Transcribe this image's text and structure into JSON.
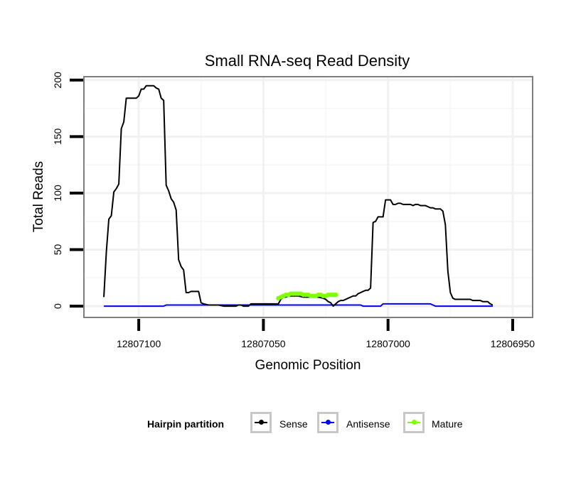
{
  "chart_data": {
    "type": "line",
    "title": "Small RNA-seq Read Density",
    "xlabel": "Genomic Position",
    "ylabel": "Total Reads",
    "x_reversed": true,
    "xlim": [
      12807122,
      12806942
    ],
    "ylim": [
      -10,
      203
    ],
    "xticks": [
      12807100,
      12807050,
      12807000,
      12806950
    ],
    "xtick_labels": [
      "12807100",
      "12807050",
      "12807000",
      "12806950"
    ],
    "yticks": [
      0,
      50,
      100,
      150,
      200
    ],
    "ytick_labels": [
      "0",
      "50",
      "100",
      "150",
      "200"
    ],
    "grid": true,
    "legend_position": "bottom",
    "legend_title": "Hairpin partition",
    "series": [
      {
        "name": "Sense",
        "color": "#000000",
        "points": [
          [
            12807114,
            8
          ],
          [
            12807113,
            48
          ],
          [
            12807112,
            77
          ],
          [
            12807111,
            80
          ],
          [
            12807110,
            101
          ],
          [
            12807109,
            104
          ],
          [
            12807108,
            108
          ],
          [
            12807107,
            157
          ],
          [
            12807106,
            163
          ],
          [
            12807105,
            184
          ],
          [
            12807104,
            184
          ],
          [
            12807103,
            184
          ],
          [
            12807102,
            184
          ],
          [
            12807101,
            184
          ],
          [
            12807100,
            186
          ],
          [
            12807099,
            192
          ],
          [
            12807098,
            192
          ],
          [
            12807097,
            195
          ],
          [
            12807096,
            195
          ],
          [
            12807095,
            195
          ],
          [
            12807094,
            195
          ],
          [
            12807093,
            193
          ],
          [
            12807092,
            192
          ],
          [
            12807091,
            184
          ],
          [
            12807090,
            182
          ],
          [
            12807089,
            107
          ],
          [
            12807088,
            102
          ],
          [
            12807087,
            95
          ],
          [
            12807086,
            92
          ],
          [
            12807085,
            85
          ],
          [
            12807084,
            41
          ],
          [
            12807083,
            35
          ],
          [
            12807082,
            32
          ],
          [
            12807081,
            12
          ],
          [
            12807080,
            12
          ],
          [
            12807079,
            13
          ],
          [
            12807078,
            13
          ],
          [
            12807077,
            13
          ],
          [
            12807076,
            13
          ],
          [
            12807075,
            3
          ],
          [
            12807074,
            2
          ],
          [
            12807072,
            1
          ],
          [
            12807070,
            1
          ],
          [
            12807068,
            1
          ],
          [
            12807066,
            0
          ],
          [
            12807064,
            0
          ],
          [
            12807062,
            0
          ],
          [
            12807061,
            0
          ],
          [
            12807060,
            1
          ],
          [
            12807059,
            1
          ],
          [
            12807058,
            0
          ],
          [
            12807057,
            0
          ],
          [
            12807056,
            0
          ],
          [
            12807055,
            2
          ],
          [
            12807054,
            2
          ],
          [
            12807050,
            2
          ],
          [
            12807045,
            2
          ],
          [
            12807044,
            2
          ],
          [
            12807043,
            6
          ],
          [
            12807042,
            8
          ],
          [
            12807041,
            8
          ],
          [
            12807040,
            9
          ],
          [
            12807038,
            9
          ],
          [
            12807036,
            9
          ],
          [
            12807034,
            8
          ],
          [
            12807032,
            8
          ],
          [
            12807030,
            8
          ],
          [
            12807028,
            8
          ],
          [
            12807026,
            7
          ],
          [
            12807025,
            6
          ],
          [
            12807024,
            4
          ],
          [
            12807023,
            3
          ],
          [
            12807022,
            0
          ],
          [
            12807021,
            2
          ],
          [
            12807020,
            4
          ],
          [
            12807019,
            5
          ],
          [
            12807018,
            5
          ],
          [
            12807017,
            6
          ],
          [
            12807016,
            7
          ],
          [
            12807015,
            8
          ],
          [
            12807014,
            9
          ],
          [
            12807013,
            9
          ],
          [
            12807012,
            11
          ],
          [
            12807011,
            12
          ],
          [
            12807010,
            13
          ],
          [
            12807009,
            14
          ],
          [
            12807008,
            14
          ],
          [
            12807007,
            16
          ],
          [
            12807006,
            74
          ],
          [
            12807005,
            75
          ],
          [
            12807004,
            79
          ],
          [
            12807003,
            79
          ],
          [
            12807002,
            79
          ],
          [
            12807001,
            94
          ],
          [
            12807000,
            94
          ],
          [
            12806999,
            94
          ],
          [
            12806998,
            90
          ],
          [
            12806997,
            90
          ],
          [
            12806996,
            91
          ],
          [
            12806995,
            91
          ],
          [
            12806994,
            90
          ],
          [
            12806993,
            90
          ],
          [
            12806992,
            90
          ],
          [
            12806991,
            90
          ],
          [
            12806990,
            89
          ],
          [
            12806989,
            90
          ],
          [
            12806988,
            90
          ],
          [
            12806987,
            89
          ],
          [
            12806986,
            89
          ],
          [
            12806985,
            89
          ],
          [
            12806984,
            88
          ],
          [
            12806983,
            87
          ],
          [
            12806982,
            87
          ],
          [
            12806981,
            86
          ],
          [
            12806980,
            86
          ],
          [
            12806979,
            86
          ],
          [
            12806978,
            84
          ],
          [
            12806977,
            72
          ],
          [
            12806976,
            31
          ],
          [
            12806975,
            12
          ],
          [
            12806974,
            7
          ],
          [
            12806973,
            6
          ],
          [
            12806972,
            6
          ],
          [
            12806971,
            6
          ],
          [
            12806970,
            6
          ],
          [
            12806969,
            6
          ],
          [
            12806968,
            6
          ],
          [
            12806967,
            6
          ],
          [
            12806966,
            5
          ],
          [
            12806965,
            5
          ],
          [
            12806964,
            5
          ],
          [
            12806963,
            5
          ],
          [
            12806962,
            4
          ],
          [
            12806961,
            4
          ],
          [
            12806960,
            4
          ],
          [
            12806959,
            2
          ],
          [
            12806958,
            1
          ]
        ]
      },
      {
        "name": "Antisense",
        "color": "#0000ff",
        "points": [
          [
            12807114,
            0
          ],
          [
            12807090,
            0
          ],
          [
            12807089,
            1
          ],
          [
            12807040,
            1
          ],
          [
            12807030,
            1
          ],
          [
            12807011,
            1
          ],
          [
            12807010,
            0
          ],
          [
            12807003,
            0
          ],
          [
            12807002,
            2
          ],
          [
            12806983,
            2
          ],
          [
            12806982,
            1
          ],
          [
            12806981,
            0
          ],
          [
            12806958,
            0
          ]
        ]
      },
      {
        "name": "Mature",
        "color": "#7fff00",
        "points": [
          [
            12807044,
            7
          ],
          [
            12807043,
            8
          ],
          [
            12807042,
            9
          ],
          [
            12807041,
            10
          ],
          [
            12807040,
            10
          ],
          [
            12807039,
            11
          ],
          [
            12807038,
            11
          ],
          [
            12807037,
            11
          ],
          [
            12807036,
            11
          ],
          [
            12807035,
            11
          ],
          [
            12807034,
            10
          ],
          [
            12807033,
            10
          ],
          [
            12807032,
            10
          ],
          [
            12807031,
            9
          ],
          [
            12807030,
            9
          ],
          [
            12807029,
            9
          ],
          [
            12807028,
            10
          ],
          [
            12807027,
            10
          ],
          [
            12807026,
            9
          ],
          [
            12807025,
            9
          ],
          [
            12807024,
            10
          ],
          [
            12807023,
            10
          ],
          [
            12807022,
            10
          ],
          [
            12807021,
            10
          ]
        ]
      }
    ]
  }
}
